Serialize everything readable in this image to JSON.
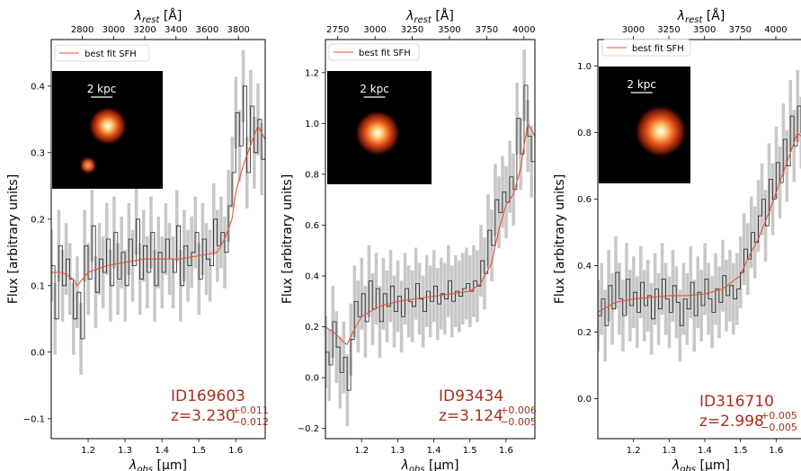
{
  "chart_data": [
    {
      "type": "line",
      "id_label": "ID169603",
      "z_label": "z=3.230",
      "z_err_plus": "+0.011",
      "z_err_minus": "-0.012",
      "legend": "best fit SFH",
      "scale_label": "2 kpc",
      "xlabel": "λobs [μm]",
      "ylabel": "Flux [arbitrary units]",
      "top_xlabel": "λrest [Å]",
      "xlim": [
        1.1,
        1.68
      ],
      "ylim": [
        -0.13,
        0.47
      ],
      "xticks": [
        "1.2",
        "1.3",
        "1.4",
        "1.5",
        "1.6"
      ],
      "yticks": [
        "-0.1",
        "0.0",
        "0.1",
        "0.2",
        "0.3",
        "0.4"
      ],
      "top_ticks": [
        "2800",
        "3000",
        "3200",
        "3400",
        "3600",
        "3800"
      ],
      "redshift": 3.23,
      "spectrum": {
        "x": [
          1.1,
          1.11,
          1.12,
          1.13,
          1.14,
          1.15,
          1.16,
          1.17,
          1.18,
          1.19,
          1.2,
          1.21,
          1.22,
          1.23,
          1.24,
          1.25,
          1.26,
          1.27,
          1.28,
          1.29,
          1.3,
          1.31,
          1.32,
          1.33,
          1.34,
          1.35,
          1.36,
          1.37,
          1.38,
          1.39,
          1.4,
          1.41,
          1.42,
          1.43,
          1.44,
          1.45,
          1.46,
          1.47,
          1.48,
          1.49,
          1.5,
          1.51,
          1.52,
          1.53,
          1.54,
          1.55,
          1.56,
          1.57,
          1.58,
          1.59,
          1.6,
          1.61,
          1.62,
          1.63,
          1.64,
          1.65,
          1.66,
          1.67
        ],
        "y": [
          0.13,
          0.05,
          0.16,
          0.1,
          0.14,
          0.11,
          0.05,
          0.09,
          0.02,
          0.16,
          0.11,
          0.19,
          0.09,
          0.14,
          0.12,
          0.17,
          0.1,
          0.18,
          0.11,
          0.15,
          0.1,
          0.17,
          0.13,
          0.2,
          0.11,
          0.16,
          0.12,
          0.18,
          0.1,
          0.15,
          0.12,
          0.17,
          0.14,
          0.12,
          0.19,
          0.1,
          0.16,
          0.13,
          0.15,
          0.18,
          0.11,
          0.17,
          0.14,
          0.13,
          0.2,
          0.16,
          0.18,
          0.15,
          0.22,
          0.27,
          0.36,
          0.31,
          0.4,
          0.27,
          0.37,
          0.3,
          0.35,
          0.29
        ]
      },
      "fit": {
        "x": [
          1.1,
          1.13,
          1.16,
          1.17,
          1.2,
          1.25,
          1.3,
          1.35,
          1.4,
          1.45,
          1.5,
          1.55,
          1.57,
          1.59,
          1.6,
          1.62,
          1.64,
          1.66,
          1.68
        ],
        "y": [
          0.12,
          0.12,
          0.11,
          0.1,
          0.12,
          0.13,
          0.135,
          0.14,
          0.14,
          0.14,
          0.145,
          0.15,
          0.17,
          0.2,
          0.24,
          0.28,
          0.31,
          0.34,
          0.32
        ]
      }
    },
    {
      "type": "line",
      "id_label": "ID93434",
      "z_label": "z=3.124",
      "z_err_plus": "+0.006",
      "z_err_minus": "-0.005",
      "legend": "best fit SFH",
      "scale_label": "2 kpc",
      "xlabel": "λobs [μm]",
      "ylabel": "Flux [arbitrary units]",
      "top_xlabel": "λrest [Å]",
      "xlim": [
        1.1,
        1.68
      ],
      "ylim": [
        -0.24,
        1.33
      ],
      "xticks": [
        "1.2",
        "1.3",
        "1.4",
        "1.5",
        "1.6"
      ],
      "yticks": [
        "-0.2",
        "0.0",
        "0.2",
        "0.4",
        "0.6",
        "0.8",
        "1.0",
        "1.2"
      ],
      "top_ticks": [
        "2750",
        "3000",
        "3250",
        "3500",
        "3750",
        "4000"
      ],
      "redshift": 3.124,
      "spectrum": {
        "x": [
          1.1,
          1.11,
          1.12,
          1.13,
          1.14,
          1.15,
          1.16,
          1.17,
          1.18,
          1.19,
          1.2,
          1.21,
          1.22,
          1.23,
          1.24,
          1.25,
          1.26,
          1.27,
          1.28,
          1.29,
          1.3,
          1.31,
          1.32,
          1.33,
          1.34,
          1.35,
          1.36,
          1.37,
          1.38,
          1.39,
          1.4,
          1.41,
          1.42,
          1.43,
          1.44,
          1.45,
          1.46,
          1.47,
          1.48,
          1.49,
          1.5,
          1.51,
          1.52,
          1.53,
          1.54,
          1.55,
          1.56,
          1.57,
          1.58,
          1.59,
          1.6,
          1.61,
          1.62,
          1.63,
          1.64,
          1.65,
          1.66,
          1.67
        ],
        "y": [
          0.1,
          0.05,
          0.22,
          0.12,
          0.02,
          0.08,
          -0.05,
          0.15,
          0.3,
          0.24,
          0.33,
          0.22,
          0.38,
          0.27,
          0.35,
          0.22,
          0.33,
          0.28,
          0.36,
          0.26,
          0.32,
          0.24,
          0.35,
          0.3,
          0.28,
          0.37,
          0.31,
          0.26,
          0.34,
          0.3,
          0.36,
          0.29,
          0.33,
          0.31,
          0.38,
          0.3,
          0.34,
          0.32,
          0.35,
          0.37,
          0.34,
          0.38,
          0.36,
          0.46,
          0.41,
          0.58,
          0.52,
          0.7,
          0.65,
          0.73,
          0.69,
          0.79,
          0.74,
          1.02,
          0.88,
          1.15,
          0.95,
          0.85
        ]
      },
      "fit": {
        "x": [
          1.1,
          1.13,
          1.15,
          1.16,
          1.18,
          1.2,
          1.25,
          1.3,
          1.35,
          1.4,
          1.45,
          1.5,
          1.53,
          1.56,
          1.58,
          1.6,
          1.62,
          1.64,
          1.66,
          1.68
        ],
        "y": [
          0.2,
          0.17,
          0.14,
          0.13,
          0.19,
          0.24,
          0.28,
          0.3,
          0.31,
          0.32,
          0.33,
          0.34,
          0.37,
          0.45,
          0.58,
          0.68,
          0.72,
          0.82,
          1.0,
          0.95
        ]
      }
    },
    {
      "type": "line",
      "id_label": "ID316710",
      "z_label": "z=2.998",
      "z_err_plus": "+0.005",
      "z_err_minus": "-0.005",
      "legend": "best fit SFH",
      "scale_label": "2 kpc",
      "xlabel": "λobs [μm]",
      "ylabel": "Flux [arbitrary units]",
      "top_xlabel": "λrest [Å]",
      "xlim": [
        1.1,
        1.68
      ],
      "ylim": [
        -0.12,
        1.08
      ],
      "xticks": [
        "1.2",
        "1.3",
        "1.4",
        "1.5",
        "1.6"
      ],
      "yticks": [
        "0.0",
        "0.2",
        "0.4",
        "0.6",
        "0.8",
        "1.0"
      ],
      "top_ticks": [
        "3000",
        "3250",
        "3500",
        "3750",
        "4000"
      ],
      "redshift": 2.998,
      "spectrum": {
        "x": [
          1.1,
          1.11,
          1.12,
          1.13,
          1.14,
          1.15,
          1.16,
          1.17,
          1.18,
          1.19,
          1.2,
          1.21,
          1.22,
          1.23,
          1.24,
          1.25,
          1.26,
          1.27,
          1.28,
          1.29,
          1.3,
          1.31,
          1.32,
          1.33,
          1.34,
          1.35,
          1.36,
          1.37,
          1.38,
          1.39,
          1.4,
          1.41,
          1.42,
          1.43,
          1.44,
          1.45,
          1.46,
          1.47,
          1.48,
          1.49,
          1.5,
          1.51,
          1.52,
          1.53,
          1.54,
          1.55,
          1.56,
          1.57,
          1.58,
          1.59,
          1.6,
          1.61,
          1.62,
          1.63,
          1.64,
          1.65,
          1.66,
          1.67
        ],
        "y": [
          0.25,
          0.3,
          0.22,
          0.34,
          0.27,
          0.38,
          0.3,
          0.25,
          0.36,
          0.28,
          0.32,
          0.26,
          0.35,
          0.28,
          0.31,
          0.24,
          0.33,
          0.27,
          0.36,
          0.3,
          0.26,
          0.34,
          0.29,
          0.22,
          0.3,
          0.27,
          0.35,
          0.25,
          0.32,
          0.28,
          0.36,
          0.3,
          0.26,
          0.33,
          0.29,
          0.37,
          0.31,
          0.34,
          0.3,
          0.33,
          0.38,
          0.45,
          0.42,
          0.5,
          0.47,
          0.55,
          0.6,
          0.52,
          0.66,
          0.6,
          0.71,
          0.65,
          0.78,
          0.7,
          0.85,
          0.76,
          0.88,
          0.8
        ]
      },
      "fit": {
        "x": [
          1.1,
          1.15,
          1.2,
          1.25,
          1.3,
          1.35,
          1.4,
          1.45,
          1.5,
          1.52,
          1.55,
          1.58,
          1.6,
          1.62,
          1.64,
          1.66,
          1.68
        ],
        "y": [
          0.26,
          0.29,
          0.3,
          0.305,
          0.31,
          0.31,
          0.315,
          0.33,
          0.37,
          0.42,
          0.48,
          0.56,
          0.62,
          0.68,
          0.74,
          0.8,
          0.78
        ]
      }
    }
  ]
}
